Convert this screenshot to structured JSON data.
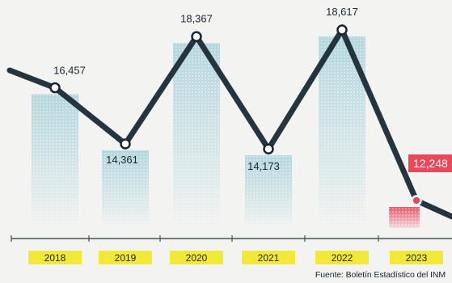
{
  "chart_data": {
    "type": "line",
    "categories": [
      "2018",
      "2019",
      "2020",
      "2021",
      "2022",
      "2023"
    ],
    "values": [
      16457,
      14361,
      18367,
      14173,
      18617,
      12248
    ],
    "data_labels": [
      "16,457",
      "14,361",
      "18,367",
      "14,173",
      "18,617",
      "12,248"
    ],
    "title": "",
    "xlabel": "",
    "ylabel": "",
    "ylim": [
      11000,
      19500
    ],
    "grid": false,
    "highlight_last": true
  },
  "colors": {
    "line": "#25353f",
    "background": "#f3f3f1",
    "area_teal": "#a9d2d9",
    "area_highlight": "#e9475a",
    "year_bar": "#f2e838",
    "axis": "#4a5157",
    "text": "#1c2630"
  },
  "source": "Fuente: Boletín Estadístico del INM"
}
